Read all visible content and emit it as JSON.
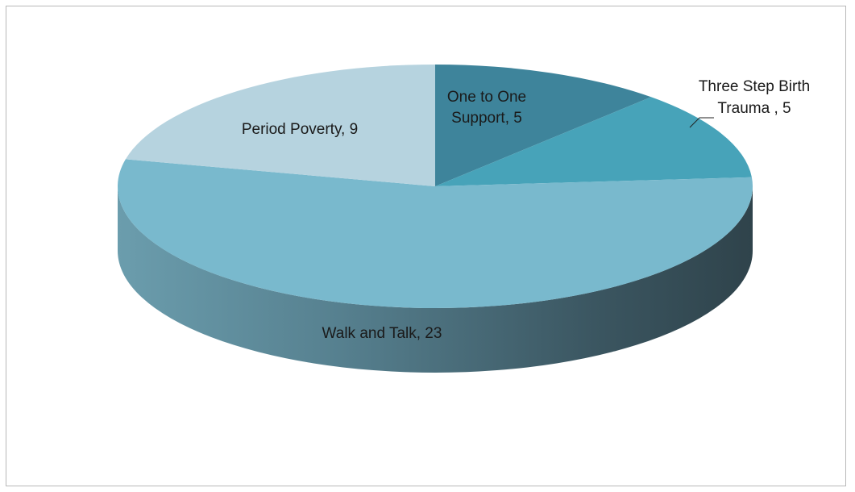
{
  "chart_data": {
    "type": "pie",
    "style": "3d",
    "title": "",
    "legend": "none",
    "slices": [
      {
        "label": "One to One Support",
        "value": 5,
        "data_label": [
          "One to One",
          "Support, 5"
        ],
        "color": "#3e849b"
      },
      {
        "label": "Three Step Birth Trauma",
        "value": 5,
        "data_label": [
          "Three Step Birth",
          "Trauma , 5"
        ],
        "color": "#47a3b9"
      },
      {
        "label": "Walk and Talk",
        "value": 23,
        "data_label": [
          "Walk and Talk, 23"
        ],
        "color": "#79b9cd"
      },
      {
        "label": "Period Poverty",
        "value": 9,
        "data_label": [
          "Period Poverty, 9"
        ],
        "color": "#b6d3df"
      }
    ]
  }
}
